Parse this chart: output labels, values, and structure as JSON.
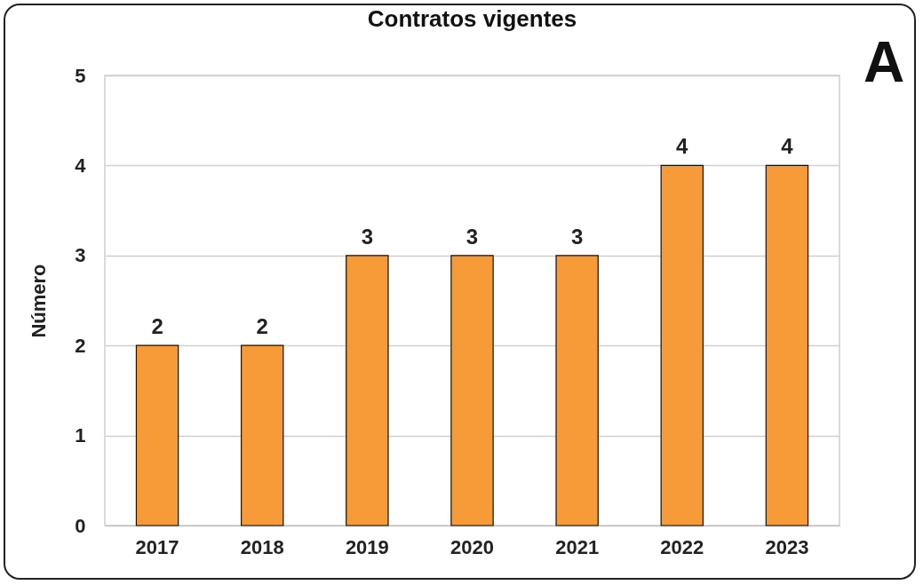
{
  "chart_data": {
    "type": "bar",
    "title": "Contratos vigentes",
    "ylabel": "Número",
    "categories": [
      "2017",
      "2018",
      "2019",
      "2020",
      "2021",
      "2022",
      "2023"
    ],
    "values": [
      2,
      2,
      3,
      3,
      3,
      4,
      4
    ],
    "color": "#f79a38",
    "ylim": [
      0,
      5
    ],
    "yticks": [
      0,
      1,
      2,
      3,
      4,
      5
    ],
    "grid": "y",
    "data_labels": true,
    "annotations": [
      "A"
    ]
  }
}
